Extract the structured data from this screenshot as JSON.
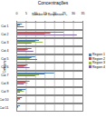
{
  "chart_data": {
    "type": "bar",
    "orientation": "horizontal",
    "title": "Concentrações",
    "x_label": "Number of Responses",
    "y_label": "Category",
    "categories": [
      "Cat 1",
      "Cat 2",
      "Cat 3",
      "Cat 4",
      "Cat 5",
      "Cat 6",
      "Cat 7",
      "Cat 8",
      "Cat 9",
      "Cat 10",
      "Cat 11"
    ],
    "series": [
      {
        "name": "Region 1",
        "color": "#4f81bd",
        "values": [
          3,
          25,
          12,
          8,
          10,
          6,
          20,
          7,
          5,
          3,
          2
        ]
      },
      {
        "name": "Region 2",
        "color": "#c0504d",
        "values": [
          2,
          18,
          10,
          6,
          8,
          5,
          15,
          5,
          3,
          2,
          1
        ]
      },
      {
        "name": "Region 3",
        "color": "#9bbb59",
        "values": [
          1,
          15,
          14,
          5,
          7,
          4,
          12,
          6,
          4,
          2,
          1
        ]
      },
      {
        "name": "Region 4",
        "color": "#8064a2",
        "values": [
          4,
          32,
          8,
          9,
          11,
          7,
          10,
          4,
          2,
          1,
          0
        ]
      }
    ],
    "xlim": [
      0,
      35
    ],
    "xticks": [
      0,
      5,
      10,
      15,
      20,
      25,
      30,
      35
    ],
    "grid": true,
    "legend": "right"
  }
}
